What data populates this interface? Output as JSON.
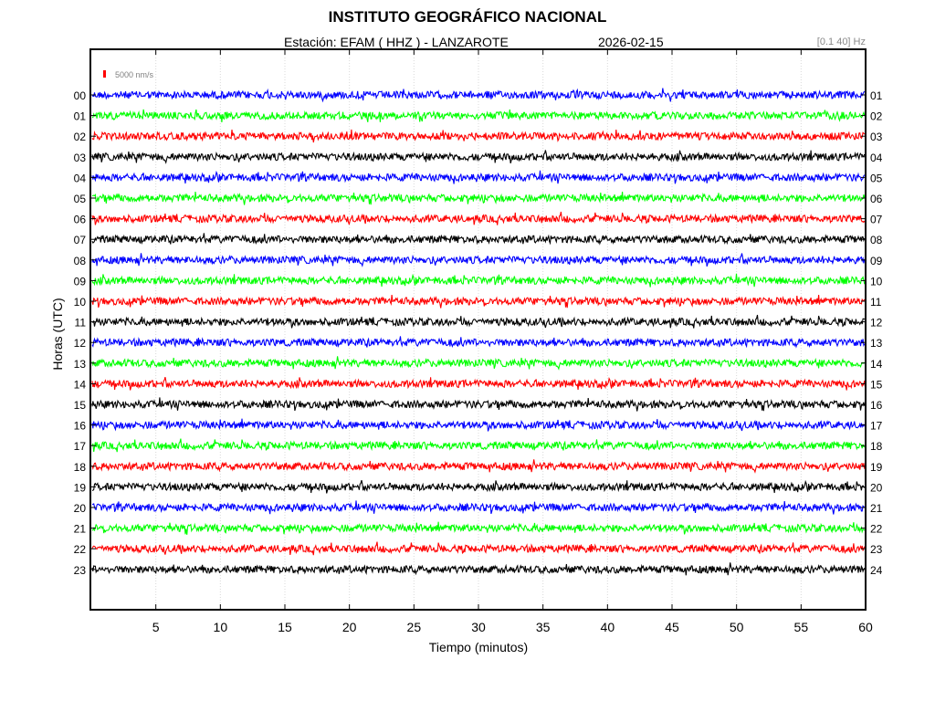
{
  "header": {
    "title": "INSTITUTO GEOGRÁFICO NACIONAL",
    "station_line": "Estación:  EFAM ( HHZ ) - LANZAROTE",
    "date": "2026-02-15",
    "filter": "[0.1 40] Hz"
  },
  "chart_data": {
    "type": "line",
    "subtype": "helicorder",
    "xlabel": "Tiempo (minutos)",
    "ylabel": "Horas (UTC)",
    "xlim": [
      0,
      60
    ],
    "x_ticks": [
      "5",
      "10",
      "15",
      "20",
      "25",
      "30",
      "35",
      "40",
      "45",
      "50",
      "55",
      "60"
    ],
    "x_tick_values": [
      5,
      10,
      15,
      20,
      25,
      30,
      35,
      40,
      45,
      50,
      55,
      60
    ],
    "left_labels": [
      "00",
      "01",
      "02",
      "03",
      "04",
      "05",
      "06",
      "07",
      "08",
      "09",
      "10",
      "11",
      "12",
      "13",
      "14",
      "15",
      "16",
      "17",
      "18",
      "19",
      "20",
      "21",
      "22",
      "23"
    ],
    "right_labels": [
      "01",
      "02",
      "03",
      "04",
      "05",
      "06",
      "07",
      "08",
      "09",
      "10",
      "11",
      "12",
      "13",
      "14",
      "15",
      "16",
      "17",
      "18",
      "19",
      "20",
      "21",
      "22",
      "23",
      "24"
    ],
    "scale_label": "5000 nm/s",
    "scale_color": "#ff0000",
    "trace_colors": [
      "#0000ff",
      "#00ff00",
      "#ff0000",
      "#000000"
    ],
    "grid": true
  }
}
